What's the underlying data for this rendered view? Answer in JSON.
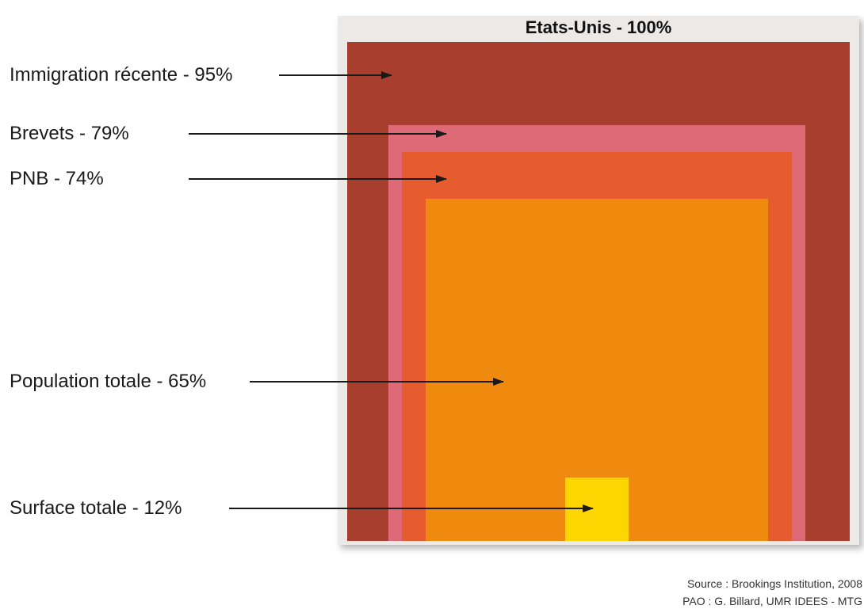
{
  "title": "Etats-Unis - 100%",
  "levels": [
    {
      "label": "Immigration récente - 95%",
      "percent": 95,
      "color": "#a83e2e"
    },
    {
      "label": "Brevets - 79%",
      "percent": 79,
      "color": "#de6a77"
    },
    {
      "label": "PNB - 74%",
      "percent": 74,
      "color": "#e65c2e"
    },
    {
      "label": "Population totale - 65%",
      "percent": 65,
      "color": "#ef8a0e"
    },
    {
      "label": "Surface totale - 12%",
      "percent": 12,
      "color": "#fdd500"
    }
  ],
  "frame_color": "#ede9e7",
  "source": "Source : Brookings Institution, 2008",
  "credit": "PAO : G. Billard, UMR IDEES - MTG"
}
